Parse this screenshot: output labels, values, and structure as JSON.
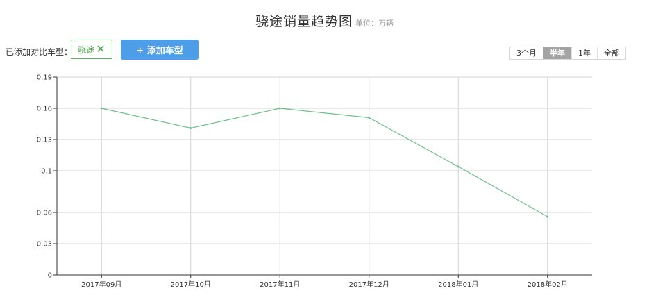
{
  "header": {
    "title": "骁途销量趋势图",
    "unit": "单位：万辆"
  },
  "compare": {
    "label": "已添加对比车型：",
    "tag_label": "骁途",
    "tag_remove_icon": "close-icon",
    "add_button_label": "+ 添加车型"
  },
  "range": {
    "tabs": [
      "3个月",
      "半年",
      "1年",
      "全部"
    ],
    "selected": "半年"
  },
  "colors": {
    "accent": "#4d9de8",
    "series": "#6fbf8a",
    "tag": "#5cb85c",
    "grid": "#d3d3d3"
  },
  "chart_data": {
    "type": "line",
    "title": "骁途销量趋势图",
    "ylabel": "",
    "xlabel": "",
    "categories": [
      "2017年09月",
      "2017年10月",
      "2017年11月",
      "2017年12月",
      "2018年01月",
      "2018年02月"
    ],
    "series": [
      {
        "name": "骁途",
        "values": [
          0.16,
          0.141,
          0.16,
          0.151,
          0.104,
          0.056
        ]
      }
    ],
    "ylim": [
      0,
      0.19
    ],
    "yticks": [
      "0",
      "0.03",
      "0.06",
      "0.1",
      "0.13",
      "0.16",
      "0.19"
    ],
    "grid": true,
    "legend": "none"
  }
}
